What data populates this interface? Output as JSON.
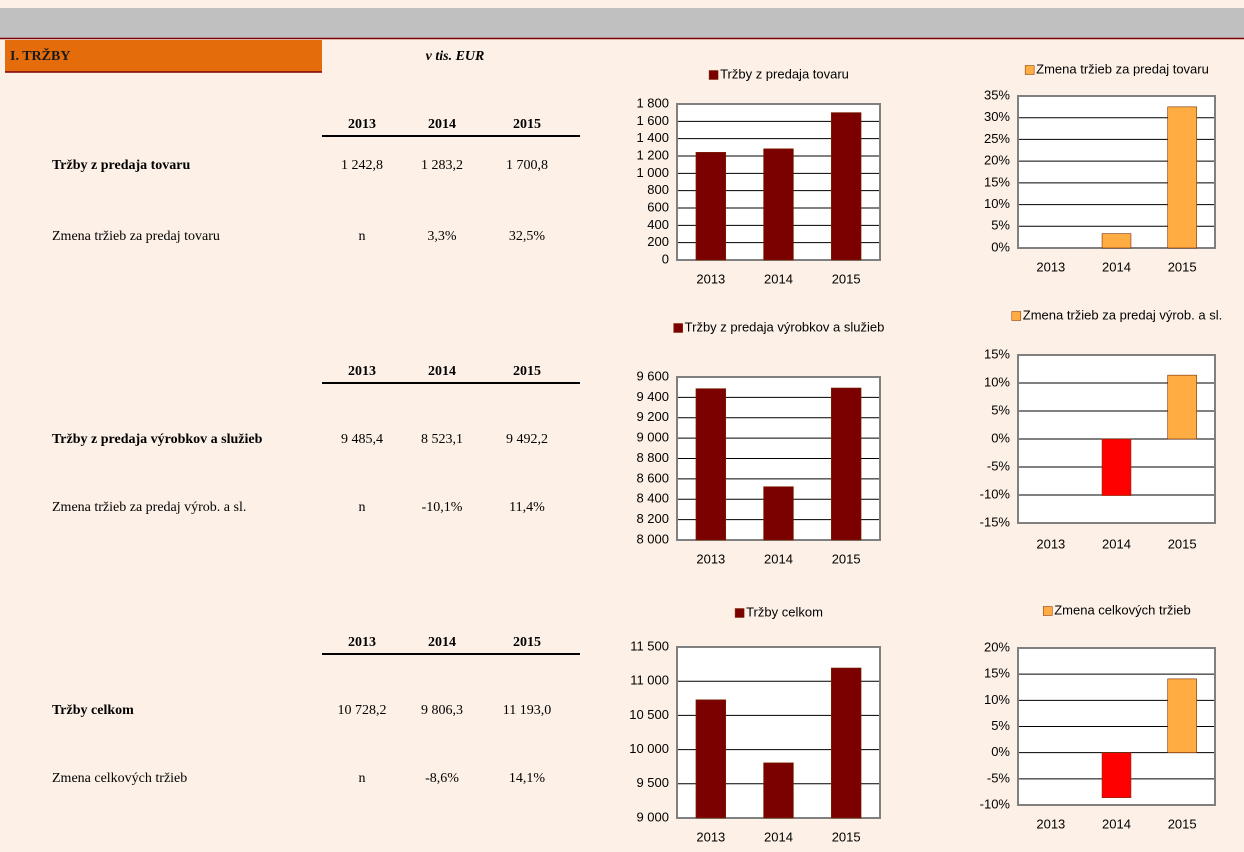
{
  "header": {
    "title": "I. TRŽBY",
    "unit": "v tis. EUR"
  },
  "tables": [
    {
      "years": [
        "2013",
        "2014",
        "2015"
      ],
      "rows": [
        {
          "label": "Tržby z predaja tovaru",
          "values": [
            "1 242,8",
            "1 283,2",
            "1 700,8"
          ]
        },
        {
          "label": "Zmena tržieb za predaj tovaru",
          "values": [
            "n",
            "3,3%",
            "32,5%"
          ]
        }
      ]
    },
    {
      "years": [
        "2013",
        "2014",
        "2015"
      ],
      "rows": [
        {
          "label": "Tržby z predaja výrobkov a služieb",
          "values": [
            "9 485,4",
            "8 523,1",
            "9 492,2"
          ]
        },
        {
          "label": "Zmena tržieb za predaj výrob. a sl.",
          "values": [
            "n",
            "-10,1%",
            "11,4%"
          ]
        }
      ]
    },
    {
      "years": [
        "2013",
        "2014",
        "2015"
      ],
      "rows": [
        {
          "label": "Tržby celkom",
          "values": [
            "10 728,2",
            "9 806,3",
            "11 193,0"
          ]
        },
        {
          "label": "Zmena celkových tržieb",
          "values": [
            "n",
            "-8,6%",
            "14,1%"
          ]
        }
      ]
    }
  ],
  "chart_data": [
    {
      "type": "bar",
      "categories": [
        "2013",
        "2014",
        "2015"
      ],
      "series": [
        {
          "name": "Tržby z predaja tovaru",
          "color": "#7b0000",
          "values": [
            1242.8,
            1283.2,
            1700.8
          ]
        }
      ],
      "ylim": [
        0,
        1800
      ],
      "grid": true,
      "yticks": [
        0,
        {
          "value": 200,
          "label": "200"
        },
        400,
        600,
        800,
        {
          "value": 1000,
          "label": "1 000"
        },
        {
          "value": 1200,
          "label": "1 200"
        },
        {
          "value": 1400,
          "label": "1 400"
        },
        {
          "value": 1600,
          "label": "1 600"
        },
        {
          "value": 1800,
          "label": "1 800"
        }
      ]
    },
    {
      "type": "bar",
      "categories": [
        "2013",
        "2014",
        "2015"
      ],
      "series": [
        {
          "name": "Zmena tržieb za predaj tovaru",
          "color": "#ffad42",
          "negative_color": "#ff0000",
          "values": [
            null,
            3.3,
            32.5
          ]
        }
      ],
      "ylim": [
        0,
        35
      ],
      "grid": true,
      "yticks": [
        {
          "value": 0,
          "label": "0%"
        },
        {
          "value": 5,
          "label": "5%"
        },
        {
          "value": 10,
          "label": "10%"
        },
        {
          "value": 15,
          "label": "15%"
        },
        {
          "value": 20,
          "label": "20%"
        },
        {
          "value": 25,
          "label": "25%"
        },
        {
          "value": 30,
          "label": "30%"
        },
        {
          "value": 35,
          "label": "35%"
        }
      ]
    },
    {
      "type": "bar",
      "categories": [
        "2013",
        "2014",
        "2015"
      ],
      "series": [
        {
          "name": "Tržby z predaja výrobkov a služieb",
          "color": "#7b0000",
          "values": [
            9485.4,
            8523.1,
            9492.2
          ]
        }
      ],
      "ylim": [
        8000,
        9600
      ],
      "grid": true,
      "yticks": [
        {
          "value": 8000,
          "label": "8 000"
        },
        {
          "value": 8200,
          "label": "8 200"
        },
        {
          "value": 8400,
          "label": "8 400"
        },
        {
          "value": 8600,
          "label": "8 600"
        },
        {
          "value": 8800,
          "label": "8 800"
        },
        {
          "value": 9000,
          "label": "9 000"
        },
        {
          "value": 9200,
          "label": "9 200"
        },
        {
          "value": 9400,
          "label": "9 400"
        },
        {
          "value": 9600,
          "label": "9 600"
        }
      ]
    },
    {
      "type": "bar",
      "categories": [
        "2013",
        "2014",
        "2015"
      ],
      "series": [
        {
          "name": "Zmena tržieb za predaj výrob. a sl.",
          "color": "#ffad42",
          "negative_color": "#ff0000",
          "values": [
            null,
            -10.1,
            11.4
          ]
        }
      ],
      "ylim": [
        -15,
        15
      ],
      "grid": true,
      "yticks": [
        {
          "value": -15,
          "label": "-15%"
        },
        {
          "value": -10,
          "label": "-10%"
        },
        {
          "value": -5,
          "label": "-5%"
        },
        {
          "value": 0,
          "label": "0%"
        },
        {
          "value": 5,
          "label": "5%"
        },
        {
          "value": 10,
          "label": "10%"
        },
        {
          "value": 15,
          "label": "15%"
        }
      ]
    },
    {
      "type": "bar",
      "categories": [
        "2013",
        "2014",
        "2015"
      ],
      "series": [
        {
          "name": "Tržby celkom",
          "color": "#7b0000",
          "values": [
            10728.2,
            9806.3,
            11193.0
          ]
        }
      ],
      "ylim": [
        9000,
        11500
      ],
      "grid": true,
      "yticks": [
        {
          "value": 9000,
          "label": "9 000"
        },
        {
          "value": 9500,
          "label": "9 500"
        },
        {
          "value": 10000,
          "label": "10 000"
        },
        {
          "value": 10500,
          "label": "10 500"
        },
        {
          "value": 11000,
          "label": "11 000"
        },
        {
          "value": 11500,
          "label": "11 500"
        }
      ]
    },
    {
      "type": "bar",
      "categories": [
        "2013",
        "2014",
        "2015"
      ],
      "series": [
        {
          "name": "Zmena celkových tržieb",
          "color": "#ffad42",
          "negative_color": "#ff0000",
          "values": [
            null,
            -8.6,
            14.1
          ]
        }
      ],
      "ylim": [
        -10,
        20
      ],
      "grid": true,
      "yticks": [
        {
          "value": -10,
          "label": "-10%"
        },
        {
          "value": -5,
          "label": "-5%"
        },
        {
          "value": 0,
          "label": "0%"
        },
        {
          "value": 5,
          "label": "5%"
        },
        {
          "value": 10,
          "label": "10%"
        },
        {
          "value": 15,
          "label": "15%"
        },
        {
          "value": 20,
          "label": "20%"
        }
      ]
    }
  ]
}
